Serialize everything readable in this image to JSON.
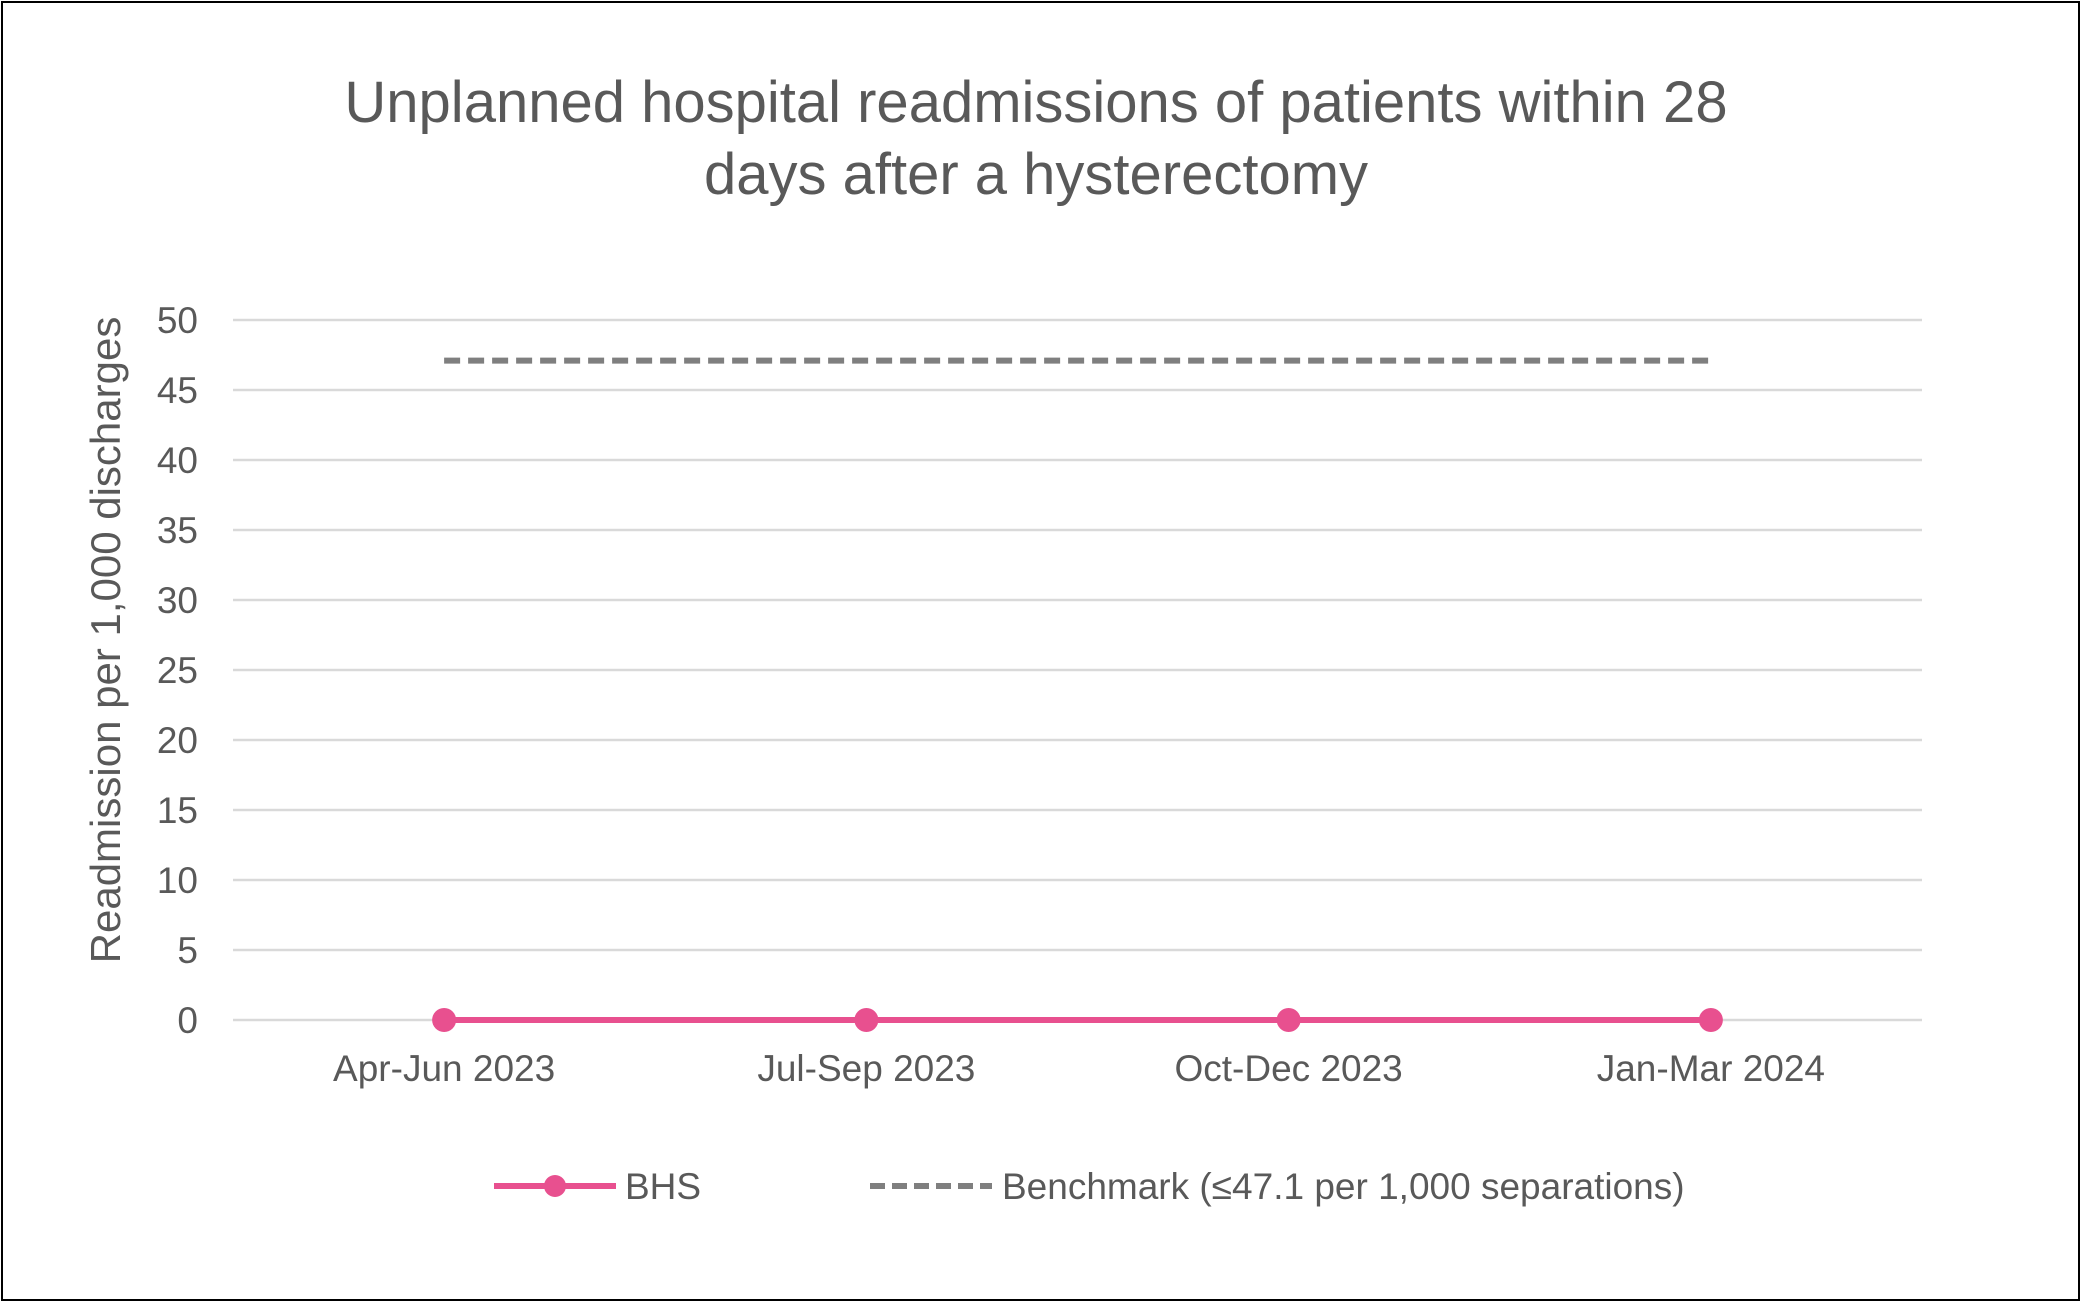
{
  "chart_data": {
    "type": "line",
    "title_lines": [
      "Unplanned hospital readmissions of patients within 28",
      "days after a hysterectomy"
    ],
    "xlabel": "",
    "ylabel": "Readmission per 1,000 discharges",
    "categories": [
      "Apr-Jun 2023",
      "Jul-Sep 2023",
      "Oct-Dec 2023",
      "Jan-Mar 2024"
    ],
    "ylim": [
      0,
      50
    ],
    "ytick_step": 5,
    "grid": true,
    "legend_position": "bottom",
    "series": [
      {
        "name": "BHS",
        "values": [
          0,
          0,
          0,
          0
        ],
        "color": "#E8508F",
        "style": "solid",
        "markers": true
      },
      {
        "name": "Benchmark (≤47.1 per 1,000 separations)",
        "values": [
          47.1,
          47.1,
          47.1,
          47.1
        ],
        "color": "#7F7F7F",
        "style": "dashed",
        "markers": false
      }
    ]
  }
}
